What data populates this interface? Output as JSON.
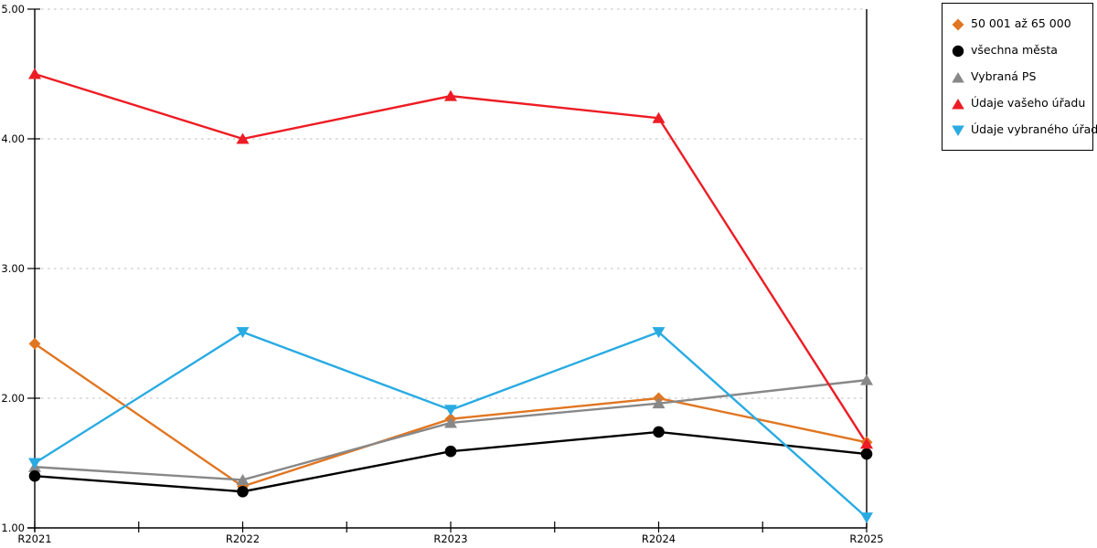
{
  "chart_data": {
    "type": "line",
    "categories": [
      "R2021",
      "R2022",
      "R2023",
      "R2024",
      "R2025"
    ],
    "y_ticks": [
      "5.00",
      "4.00",
      "3.00",
      "2.00",
      "1.00"
    ],
    "ylim": [
      1.0,
      5.0
    ],
    "grid": "dotted-horizontal",
    "legend_position": "top-right-boxed",
    "title": "",
    "xlabel": "",
    "ylabel": "",
    "series": [
      {
        "name": "50 001 až 65 000",
        "color": "#E07622",
        "marker": "diamond",
        "values": [
          2.42,
          1.32,
          1.84,
          2.0,
          1.66
        ]
      },
      {
        "name": "všechna města",
        "color": "#000000",
        "marker": "circle",
        "values": [
          1.4,
          1.28,
          1.59,
          1.74,
          1.57
        ]
      },
      {
        "name": "Vybraná PS",
        "color": "#888888",
        "marker": "triangle-up",
        "values": [
          1.47,
          1.37,
          1.81,
          1.96,
          2.14
        ]
      },
      {
        "name": "Údaje vašeho úřadu",
        "color": "#ED1C24",
        "marker": "triangle-up",
        "values": [
          4.5,
          4.0,
          4.33,
          4.16,
          1.65
        ]
      },
      {
        "name": "Údaje vybraného úřadu",
        "color": "#29ABE2",
        "marker": "triangle-down",
        "values": [
          1.5,
          2.51,
          1.91,
          2.51,
          1.08
        ]
      }
    ],
    "colors": {
      "axis": "#000000",
      "gridline": "#c9c9c9",
      "background": "#ffffff"
    }
  }
}
